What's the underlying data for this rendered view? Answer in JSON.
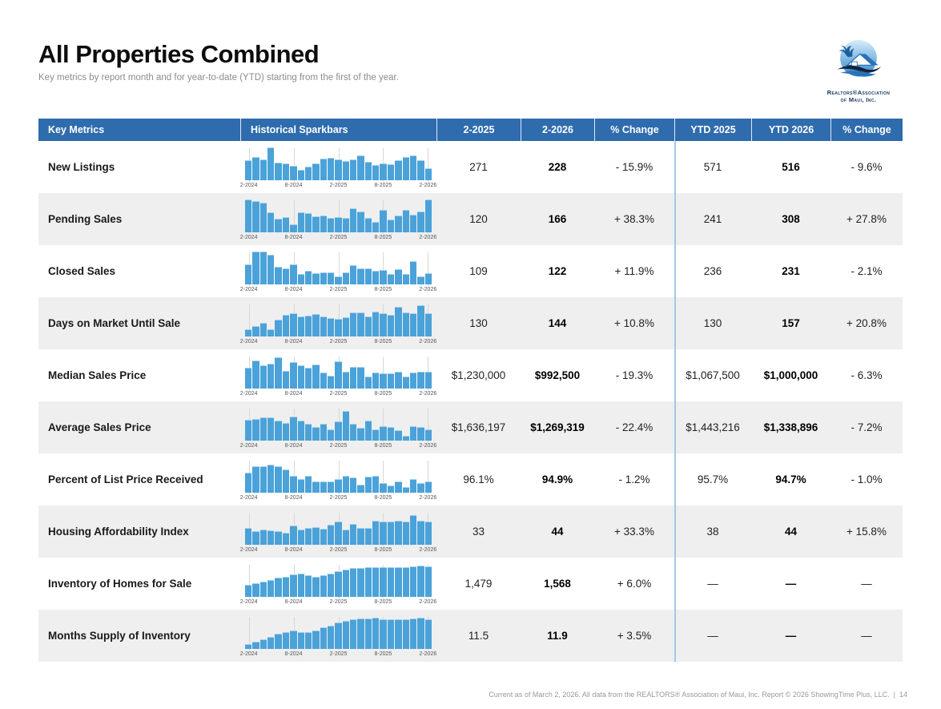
{
  "page": {
    "title": "All Properties Combined",
    "subtitle": "Key metrics by report month and for year-to-date (YTD) starting from the first of the year.",
    "footer": "Current as of March 2, 2026. All data from the REALTORS® Association of Maui, Inc. Report © 2026 ShowingTime Plus, LLC.",
    "page_number": "14"
  },
  "logo": {
    "line1": "Realtors®Association",
    "line2": "of Maui, Inc."
  },
  "colors": {
    "header_bg": "#2e6cad",
    "bar": "#4ba2d9",
    "bar_cap": "#a5d0ec",
    "divider": "#9fc9e8",
    "alt_row": "#efefef"
  },
  "table": {
    "headers": [
      "Key Metrics",
      "Historical Sparkbars",
      "2-2025",
      "2-2026",
      "% Change",
      "YTD 2025",
      "YTD 2026",
      "% Change"
    ],
    "spark_ticks": [
      "2-2024",
      "8-2024",
      "2-2025",
      "8-2025",
      "2-2026"
    ]
  },
  "chart_data": {
    "type": "bar",
    "title": "All Properties Combined — Key Metrics with Historical Sparkbars (monthly, 2-2024 through 2-2026, relative heights 0–1)",
    "x_ticks": [
      "2-2024",
      "8-2024",
      "2-2025",
      "8-2025",
      "2-2026"
    ],
    "rows": [
      {
        "label": "New Listings",
        "values": [
          "271",
          "228",
          "- 15.9%",
          "571",
          "516",
          "- 9.6%"
        ],
        "spark": [
          0.6,
          0.7,
          0.62,
          1.0,
          0.52,
          0.48,
          0.42,
          0.28,
          0.38,
          0.5,
          0.64,
          0.66,
          0.62,
          0.56,
          0.62,
          0.74,
          0.55,
          0.44,
          0.5,
          0.46,
          0.58,
          0.68,
          0.74,
          0.58,
          0.34
        ]
      },
      {
        "label": "Pending Sales",
        "values": [
          "120",
          "166",
          "+ 38.3%",
          "241",
          "308",
          "+ 27.8%"
        ],
        "spark": [
          1.0,
          0.95,
          0.9,
          0.58,
          0.38,
          0.44,
          0.22,
          0.58,
          0.56,
          0.46,
          0.5,
          0.42,
          0.44,
          0.42,
          0.72,
          0.62,
          0.42,
          0.28,
          0.66,
          0.36,
          0.48,
          0.66,
          0.52,
          0.62,
          0.98
        ]
      },
      {
        "label": "Closed Sales",
        "values": [
          "109",
          "122",
          "+ 11.9%",
          "236",
          "231",
          "- 2.1%"
        ],
        "spark": [
          0.58,
          1.0,
          1.0,
          0.88,
          0.52,
          0.46,
          0.58,
          0.3,
          0.4,
          0.32,
          0.34,
          0.34,
          0.22,
          0.34,
          0.56,
          0.46,
          0.46,
          0.38,
          0.42,
          0.28,
          0.44,
          0.3,
          0.68,
          0.22,
          0.32
        ]
      },
      {
        "label": "Days on Market Until Sale",
        "values": [
          "130",
          "144",
          "+ 10.8%",
          "130",
          "157",
          "+ 20.8%"
        ],
        "spark": [
          0.18,
          0.3,
          0.4,
          0.2,
          0.5,
          0.64,
          0.7,
          0.6,
          0.62,
          0.66,
          0.58,
          0.54,
          0.52,
          0.56,
          0.72,
          0.72,
          0.6,
          0.74,
          0.7,
          0.64,
          0.88,
          0.72,
          0.68,
          0.95,
          0.68
        ]
      },
      {
        "label": "Median Sales Price",
        "values": [
          "$1,230,000",
          "$992,500",
          "- 19.3%",
          "$1,067,500",
          "$1,000,000",
          "- 6.3%"
        ],
        "spark": [
          0.62,
          0.85,
          0.68,
          0.74,
          0.95,
          0.52,
          0.78,
          0.7,
          0.62,
          0.72,
          0.46,
          0.36,
          0.82,
          0.5,
          0.64,
          0.64,
          0.34,
          0.46,
          0.44,
          0.44,
          0.48,
          0.34,
          0.46,
          0.5,
          0.5
        ]
      },
      {
        "label": "Average Sales Price",
        "values": [
          "$1,636,197",
          "$1,269,319",
          "- 22.4%",
          "$1,443,216",
          "$1,338,896",
          "- 7.2%"
        ],
        "spark": [
          0.62,
          0.64,
          0.68,
          0.68,
          0.58,
          0.52,
          0.72,
          0.58,
          0.48,
          0.38,
          0.48,
          0.32,
          0.56,
          0.88,
          0.48,
          0.36,
          0.58,
          0.32,
          0.42,
          0.38,
          0.28,
          0.12,
          0.42,
          0.4,
          0.32
        ]
      },
      {
        "label": "Percent of List Price Received",
        "values": [
          "96.1%",
          "94.9%",
          "- 1.2%",
          "95.7%",
          "94.7%",
          "- 1.0%"
        ],
        "spark": [
          0.58,
          0.78,
          0.78,
          0.85,
          0.8,
          0.68,
          0.48,
          0.38,
          0.48,
          0.32,
          0.32,
          0.32,
          0.38,
          0.48,
          0.44,
          0.22,
          0.46,
          0.5,
          0.26,
          0.2,
          0.32,
          0.14,
          0.38,
          0.26,
          0.32
        ]
      },
      {
        "label": "Housing Affordability Index",
        "values": [
          "33",
          "44",
          "+ 33.3%",
          "38",
          "44",
          "+ 15.8%"
        ],
        "spark": [
          0.5,
          0.4,
          0.45,
          0.42,
          0.4,
          0.34,
          0.56,
          0.44,
          0.5,
          0.52,
          0.46,
          0.58,
          0.68,
          0.45,
          0.62,
          0.48,
          0.48,
          0.72,
          0.7,
          0.7,
          0.72,
          0.7,
          0.88,
          0.72,
          0.7
        ]
      },
      {
        "label": "Inventory of Homes for Sale",
        "values": [
          "1,479",
          "1,568",
          "+ 6.0%",
          "—",
          "—",
          "—"
        ],
        "spark": [
          0.35,
          0.4,
          0.44,
          0.5,
          0.56,
          0.6,
          0.66,
          0.68,
          0.64,
          0.6,
          0.64,
          0.7,
          0.76,
          0.82,
          0.86,
          0.86,
          0.9,
          0.88,
          0.9,
          0.88,
          0.88,
          0.88,
          0.92,
          0.94,
          0.92
        ]
      },
      {
        "label": "Months Supply of Inventory",
        "values": [
          "11.5",
          "11.9",
          "+ 3.5%",
          "—",
          "—",
          "—"
        ],
        "spark": [
          0.12,
          0.18,
          0.26,
          0.34,
          0.44,
          0.5,
          0.55,
          0.5,
          0.48,
          0.55,
          0.64,
          0.7,
          0.78,
          0.85,
          0.9,
          0.92,
          0.92,
          0.95,
          0.88,
          0.9,
          0.9,
          0.88,
          0.92,
          0.95,
          0.88
        ]
      }
    ]
  }
}
